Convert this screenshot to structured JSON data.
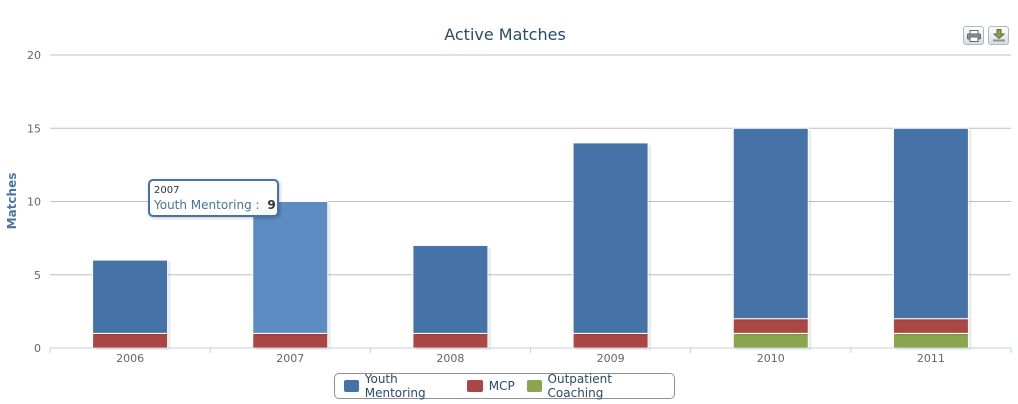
{
  "chart_data": {
    "type": "bar",
    "stacked": true,
    "title": "Active Matches",
    "xlabel": "",
    "ylabel": "Matches",
    "categories": [
      "2006",
      "2007",
      "2008",
      "2009",
      "2010",
      "2011"
    ],
    "ylim": [
      0,
      20
    ],
    "yticks": [
      "0",
      "5",
      "10",
      "15",
      "20"
    ],
    "grid": true,
    "legend_placement": "bottom-center",
    "series": [
      {
        "name": "Outpatient Coaching",
        "color": "#89a54e",
        "values": [
          0,
          0,
          0,
          0,
          1,
          1
        ]
      },
      {
        "name": "MCP",
        "color": "#aa4643",
        "values": [
          1,
          1,
          1,
          1,
          1,
          1
        ]
      },
      {
        "name": "Youth Mentoring",
        "color": "#4572a7",
        "values": [
          5,
          9,
          6,
          13,
          13,
          13
        ]
      }
    ]
  },
  "legend": {
    "items": [
      {
        "label": "Youth Mentoring",
        "color": "#4572a7"
      },
      {
        "label": "MCP",
        "color": "#aa4643"
      },
      {
        "label": "Outpatient Coaching",
        "color": "#89a54e"
      }
    ]
  },
  "tooltip": {
    "header": "2007",
    "series_name": "Youth Mentoring :",
    "value": "9",
    "category_index": 1,
    "series_name_key": "Youth Mentoring"
  },
  "export": {
    "print_icon": "printer-icon",
    "download_icon": "download-arrow-icon"
  }
}
